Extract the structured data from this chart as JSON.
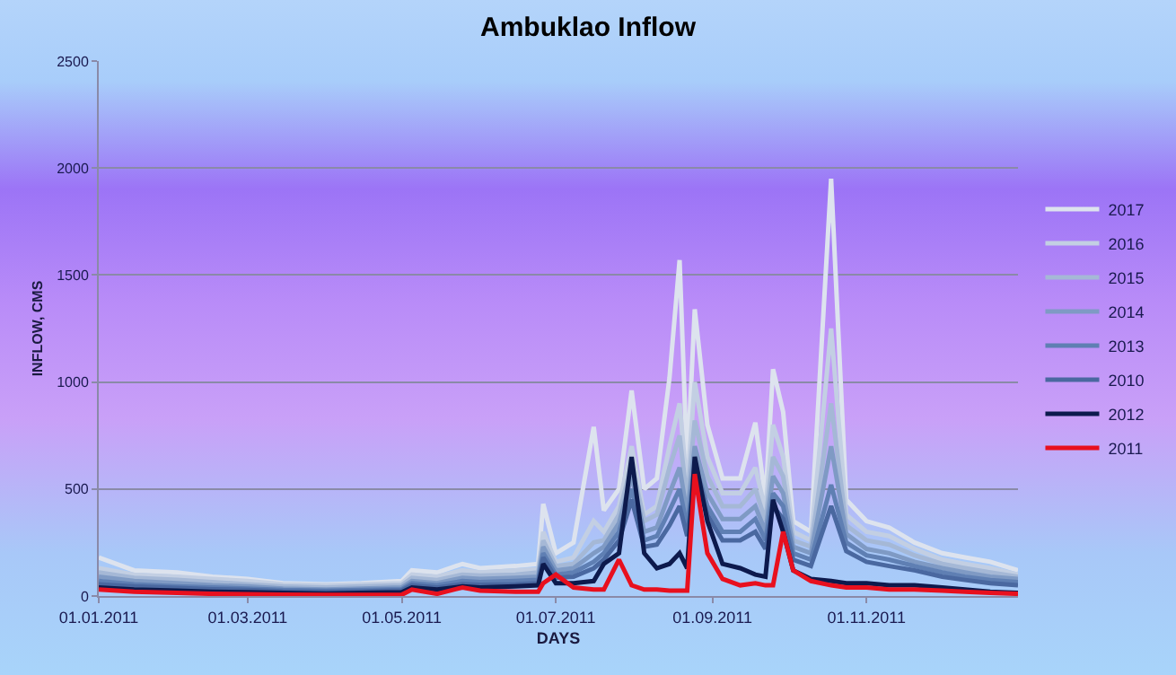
{
  "chart_data": {
    "type": "line",
    "title": "Ambuklao Inflow",
    "xlabel": "DAYS",
    "ylabel": "INFLOW, CMS",
    "x": [
      "2011-01-01",
      "2011-01-15",
      "2011-02-01",
      "2011-02-15",
      "2011-03-01",
      "2011-03-15",
      "2011-04-01",
      "2011-04-15",
      "2011-05-01",
      "2011-05-05",
      "2011-05-15",
      "2011-05-25",
      "2011-06-01",
      "2011-06-15",
      "2011-06-24",
      "2011-06-26",
      "2011-07-01",
      "2011-07-08",
      "2011-07-16",
      "2011-07-20",
      "2011-07-26",
      "2011-07-31",
      "2011-08-05",
      "2011-08-10",
      "2011-08-15",
      "2011-08-19",
      "2011-08-22",
      "2011-08-25",
      "2011-08-30",
      "2011-09-05",
      "2011-09-12",
      "2011-09-18",
      "2011-09-22",
      "2011-09-25",
      "2011-09-29",
      "2011-10-03",
      "2011-10-10",
      "2011-10-18",
      "2011-10-24",
      "2011-11-01",
      "2011-11-10",
      "2011-11-20",
      "2011-12-01",
      "2011-12-10",
      "2011-12-20",
      "2011-12-31"
    ],
    "series": [
      {
        "name": "2017",
        "color": "#dde3ee",
        "values": [
          180,
          120,
          110,
          90,
          80,
          60,
          55,
          60,
          70,
          120,
          110,
          150,
          130,
          140,
          150,
          430,
          200,
          250,
          790,
          400,
          500,
          960,
          500,
          550,
          1020,
          1570,
          600,
          1340,
          800,
          550,
          550,
          810,
          450,
          1060,
          860,
          350,
          300,
          1950,
          450,
          350,
          320,
          250,
          200,
          180,
          160,
          120
        ]
      },
      {
        "name": "2016",
        "color": "#c3cfe3",
        "values": [
          130,
          100,
          90,
          80,
          70,
          55,
          50,
          55,
          60,
          100,
          90,
          120,
          110,
          120,
          125,
          300,
          160,
          180,
          350,
          300,
          420,
          700,
          380,
          420,
          700,
          900,
          500,
          1000,
          650,
          480,
          480,
          600,
          400,
          800,
          650,
          300,
          260,
          1250,
          380,
          300,
          280,
          220,
          170,
          150,
          130,
          100
        ]
      },
      {
        "name": "2015",
        "color": "#a5b8d6",
        "values": [
          110,
          85,
          75,
          65,
          55,
          45,
          40,
          45,
          50,
          85,
          75,
          100,
          95,
          100,
          110,
          260,
          140,
          150,
          250,
          260,
          380,
          620,
          350,
          380,
          600,
          750,
          450,
          820,
          560,
          420,
          420,
          500,
          350,
          650,
          560,
          260,
          230,
          900,
          330,
          260,
          240,
          190,
          150,
          130,
          110,
          90
        ]
      },
      {
        "name": "2014",
        "color": "#7f9ac4",
        "values": [
          90,
          70,
          60,
          50,
          45,
          35,
          30,
          35,
          40,
          70,
          60,
          85,
          80,
          85,
          90,
          230,
          120,
          130,
          200,
          230,
          340,
          560,
          300,
          320,
          480,
          600,
          380,
          700,
          480,
          360,
          360,
          420,
          300,
          560,
          480,
          230,
          200,
          700,
          290,
          220,
          200,
          160,
          130,
          110,
          90,
          80
        ]
      },
      {
        "name": "2013",
        "color": "#5f7fb3",
        "values": [
          70,
          55,
          45,
          40,
          35,
          28,
          25,
          28,
          32,
          60,
          50,
          70,
          65,
          70,
          75,
          200,
          100,
          110,
          160,
          200,
          300,
          500,
          260,
          280,
          400,
          500,
          320,
          620,
          420,
          300,
          300,
          360,
          260,
          480,
          420,
          200,
          170,
          520,
          250,
          190,
          170,
          140,
          110,
          90,
          75,
          65
        ]
      },
      {
        "name": "2010",
        "color": "#4a68a0",
        "values": [
          55,
          45,
          38,
          32,
          28,
          22,
          20,
          22,
          26,
          50,
          40,
          55,
          52,
          55,
          60,
          180,
          85,
          90,
          130,
          170,
          260,
          450,
          230,
          240,
          330,
          420,
          280,
          560,
          380,
          260,
          260,
          300,
          220,
          420,
          360,
          170,
          140,
          420,
          210,
          160,
          140,
          120,
          90,
          75,
          60,
          50
        ]
      },
      {
        "name": "2012",
        "color": "#0d1a4d",
        "values": [
          40,
          30,
          25,
          20,
          18,
          15,
          12,
          15,
          18,
          40,
          30,
          45,
          40,
          45,
          50,
          150,
          60,
          60,
          70,
          150,
          200,
          650,
          200,
          130,
          150,
          200,
          130,
          650,
          350,
          150,
          130,
          100,
          90,
          450,
          300,
          120,
          80,
          70,
          60,
          60,
          50,
          50,
          40,
          30,
          20,
          15
        ]
      },
      {
        "name": "2011",
        "color": "#e8101e",
        "values": [
          30,
          20,
          15,
          10,
          8,
          6,
          5,
          5,
          6,
          30,
          10,
          40,
          25,
          20,
          20,
          60,
          100,
          40,
          30,
          30,
          170,
          50,
          30,
          30,
          25,
          25,
          25,
          570,
          200,
          80,
          50,
          60,
          50,
          50,
          300,
          120,
          70,
          50,
          40,
          40,
          30,
          30,
          25,
          20,
          15,
          10
        ]
      }
    ],
    "xlim": [
      "2011-01-01",
      "2011-12-31"
    ],
    "xticks": [
      {
        "value": "2011-01-01",
        "label": "01.01.2011"
      },
      {
        "value": "2011-03-01",
        "label": "01.03.2011"
      },
      {
        "value": "2011-05-01",
        "label": "01.05.2011"
      },
      {
        "value": "2011-07-01",
        "label": "01.07.2011"
      },
      {
        "value": "2011-09-01",
        "label": "01.09.2011"
      },
      {
        "value": "2011-11-01",
        "label": "01.11.2011"
      }
    ],
    "ylim": [
      0,
      2500
    ],
    "yticks": [
      0,
      500,
      1000,
      1500,
      2000,
      2500
    ],
    "grid": "y",
    "legend": "right",
    "marker": "none",
    "line_style": "solid"
  }
}
